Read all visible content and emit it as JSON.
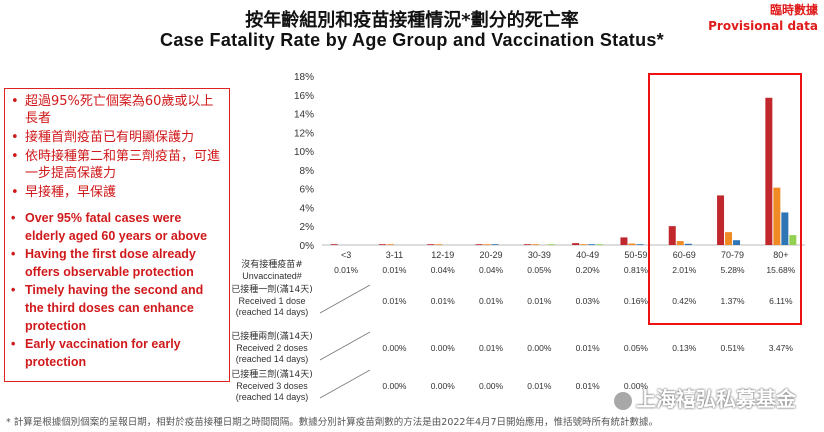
{
  "header": {
    "title_zh": "按年齡組別和疫苗接種情況*劃分的死亡率",
    "title_en": "Case Fatality Rate by Age Group and Vaccination Status*",
    "provisional_zh": "臨時數據",
    "provisional_en": "Provisional data"
  },
  "bullets_zh": [
    "超過95%死亡個案為60歲或以上長者",
    "接種首劑疫苗已有明顯保護力",
    "依時接種第二和第三劑疫苗，可進一步提高保護力",
    "早接種，早保護"
  ],
  "bullets_en": [
    "Over 95% fatal cases were elderly aged 60 years or above",
    "Having the first dose already offers observable protection",
    "Timely having the second and the third doses can enhance protection",
    "Early vaccination for early protection"
  ],
  "chart_data": {
    "type": "bar",
    "categories": [
      "<3",
      "3-11",
      "12-19",
      "20-29",
      "30-39",
      "40-49",
      "50-59",
      "60-69",
      "70-79",
      "80+"
    ],
    "ylim": [
      0,
      18
    ],
    "y_ticks": [
      "0%",
      "2%",
      "4%",
      "6%",
      "8%",
      "10%",
      "12%",
      "14%",
      "16%",
      "18%"
    ],
    "grid": false,
    "series": [
      {
        "name_zh": "沒有接種疫苗#",
        "name_en": "Unvaccinated#",
        "color": "#c0282d",
        "values": [
          0.01,
          0.01,
          0.04,
          0.04,
          0.05,
          0.2,
          0.81,
          2.01,
          5.28,
          15.68
        ],
        "labels": [
          "0.01%",
          "0.01%",
          "0.04%",
          "0.04%",
          "0.05%",
          "0.20%",
          "0.81%",
          "2.01%",
          "5.28%",
          "15.68%"
        ]
      },
      {
        "name_zh": "已接種一劑(滿14天)",
        "name_en": "Received 1 dose",
        "name_en2": "(reached 14 days)",
        "color": "#f08a24",
        "values": [
          null,
          0.01,
          0.01,
          0.01,
          0.01,
          0.03,
          0.16,
          0.42,
          1.37,
          6.11
        ],
        "labels": [
          "",
          "0.01%",
          "0.01%",
          "0.01%",
          "0.01%",
          "0.03%",
          "0.16%",
          "0.42%",
          "1.37%",
          "6.11%"
        ]
      },
      {
        "name_zh": "已接種兩劑(滿14天)",
        "name_en": "Received 2 doses",
        "name_en2": "(reached 14 days)",
        "color": "#2e75b6",
        "values": [
          null,
          0.0,
          0.0,
          0.01,
          0.0,
          0.01,
          0.05,
          0.13,
          0.51,
          3.47
        ],
        "labels": [
          "",
          "0.00%",
          "0.00%",
          "0.01%",
          "0.00%",
          "0.01%",
          "0.05%",
          "0.13%",
          "0.51%",
          "3.47%"
        ]
      },
      {
        "name_zh": "已接種三劑(滿14天)",
        "name_en": "Received 3 doses",
        "name_en2": "(reached 14 days)",
        "color": "#92d050",
        "values": [
          null,
          0.0,
          0.0,
          0.0,
          0.01,
          0.01,
          0.0,
          0.0,
          0.0,
          1.05
        ],
        "labels": [
          "",
          "0.00%",
          "0.00%",
          "0.00%",
          "0.01%",
          "0.01%",
          "0.00%",
          "",
          "",
          ""
        ]
      }
    ]
  },
  "footnote": "* 計算是根據個別個案的呈報日期，相對於疫苗接種日期之時間間隔。數據分別計算疫苗劑數的方法是由2022年4月7日開始應用，惟括號時所有統計數據。",
  "watermark": "上海禧弘私募基金"
}
